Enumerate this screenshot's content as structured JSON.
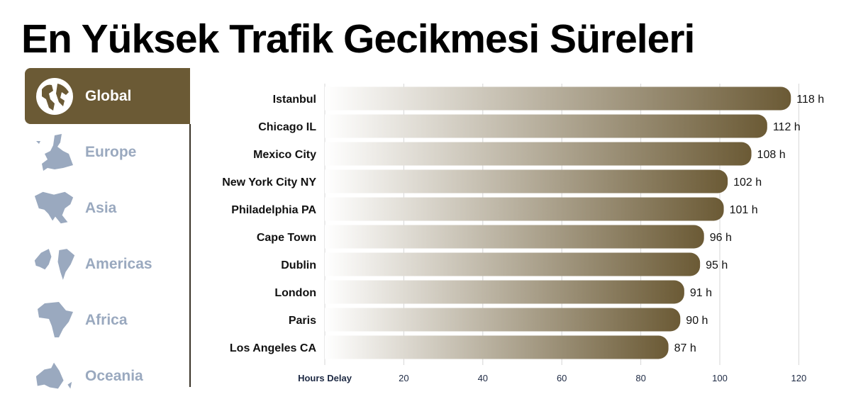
{
  "title": "En Yüksek Trafik Gecikmesi Süreleri",
  "sidebar": {
    "items": [
      {
        "label": "Global",
        "icon": "globe-icon",
        "active": true
      },
      {
        "label": "Europe",
        "icon": "europe-map-icon",
        "active": false
      },
      {
        "label": "Asia",
        "icon": "asia-map-icon",
        "active": false
      },
      {
        "label": "Americas",
        "icon": "americas-map-icon",
        "active": false
      },
      {
        "label": "Africa",
        "icon": "africa-map-icon",
        "active": false
      },
      {
        "label": "Oceania",
        "icon": "oceania-map-icon",
        "active": false
      }
    ],
    "active_color": "#6b5a35",
    "inactive_color": "#9aa9bf"
  },
  "chart_data": {
    "type": "bar",
    "orientation": "horizontal",
    "categories": [
      "Istanbul",
      "Chicago IL",
      "Mexico City",
      "New York City NY",
      "Philadelphia PA",
      "Cape Town",
      "Dublin",
      "London",
      "Paris",
      "Los Angeles CA"
    ],
    "values": [
      118,
      112,
      108,
      102,
      101,
      96,
      95,
      91,
      90,
      87
    ],
    "value_labels": [
      "118 h",
      "112 h",
      "108 h",
      "102 h",
      "101 h",
      "96 h",
      "95 h",
      "91 h",
      "90 h",
      "87 h"
    ],
    "xlabel": "Hours Delay",
    "xticks": [
      20,
      40,
      60,
      80,
      100,
      120
    ],
    "xlim": [
      0,
      125
    ],
    "grid": true,
    "bar_gradient": [
      "#ffffff",
      "#6b5a35"
    ]
  }
}
